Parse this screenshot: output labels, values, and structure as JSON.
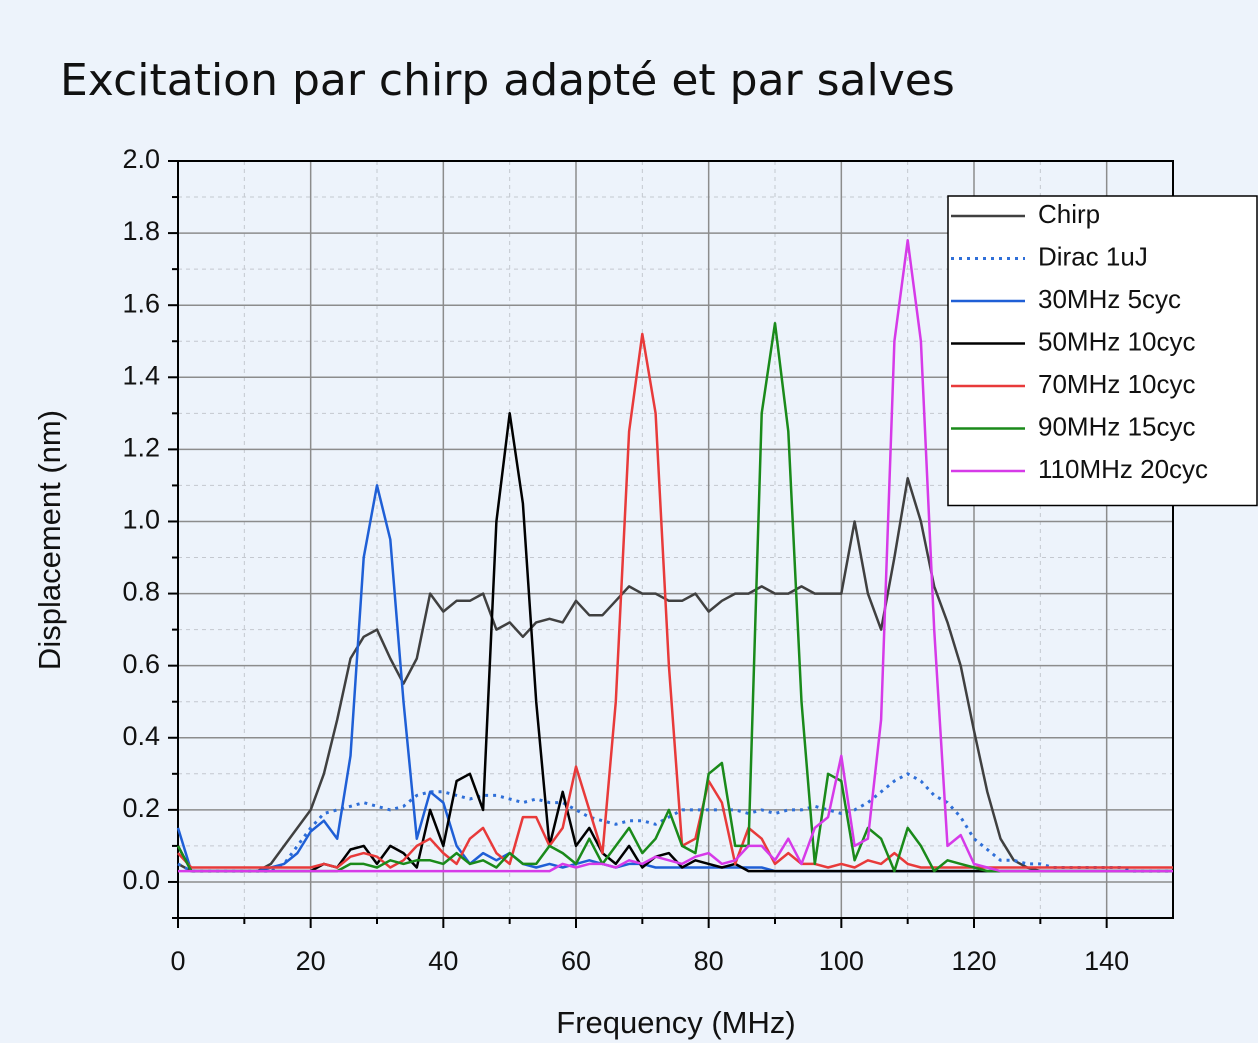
{
  "chart_data": {
    "type": "line",
    "title": "Excitation par chirp adapté et par salves",
    "x_label": "Frequency (MHz)",
    "y_label": "Displacement (nm)",
    "xlim": [
      0,
      150
    ],
    "ylim": [
      -0.1,
      2.0
    ],
    "xticks": [
      0,
      20,
      40,
      60,
      80,
      100,
      120,
      140
    ],
    "yticks": [
      {
        "value": 0,
        "label": "0.0"
      },
      0.2,
      0.4,
      0.6,
      0.8,
      {
        "value": 1,
        "label": "1.0"
      },
      1.2,
      1.4,
      1.6,
      1.8,
      {
        "value": 2,
        "label": "2.0"
      }
    ],
    "xminorticks": [
      10,
      30,
      50,
      70,
      90,
      110,
      130
    ],
    "yminorticks": [
      -0.1,
      0.1,
      0.3,
      0.5,
      0.7,
      0.9,
      1.1,
      1.3,
      1.5,
      1.7,
      1.9
    ],
    "grid": true,
    "legend": "top right",
    "x": [
      0,
      2,
      4,
      6,
      8,
      10,
      12,
      14,
      16,
      18,
      20,
      22,
      24,
      26,
      28,
      30,
      32,
      34,
      36,
      38,
      40,
      42,
      44,
      46,
      48,
      50,
      52,
      54,
      56,
      58,
      60,
      62,
      64,
      66,
      68,
      70,
      72,
      74,
      76,
      78,
      80,
      82,
      84,
      86,
      88,
      90,
      92,
      94,
      96,
      98,
      100,
      102,
      104,
      106,
      108,
      110,
      112,
      114,
      116,
      118,
      120,
      122,
      124,
      126,
      128,
      130,
      132,
      134,
      136,
      138,
      140,
      142,
      144,
      146,
      148,
      150
    ],
    "series": [
      {
        "name": "Chirp",
        "color": "#404040",
        "line_style": "solid",
        "values": [
          0.05,
          0.03,
          0.03,
          0.03,
          0.03,
          0.03,
          0.03,
          0.05,
          0.1,
          0.15,
          0.2,
          0.3,
          0.45,
          0.62,
          0.68,
          0.7,
          0.62,
          0.55,
          0.62,
          0.8,
          0.75,
          0.78,
          0.78,
          0.8,
          0.7,
          0.72,
          0.68,
          0.72,
          0.73,
          0.72,
          0.78,
          0.74,
          0.74,
          0.78,
          0.82,
          0.8,
          0.8,
          0.78,
          0.78,
          0.8,
          0.75,
          0.78,
          0.8,
          0.8,
          0.82,
          0.8,
          0.8,
          0.82,
          0.8,
          0.8,
          0.8,
          1.0,
          0.8,
          0.7,
          0.9,
          1.12,
          1.0,
          0.82,
          0.72,
          0.6,
          0.42,
          0.25,
          0.12,
          0.06,
          0.04,
          0.03,
          0.03,
          0.03,
          0.03,
          0.03,
          0.03,
          0.03,
          0.03,
          0.03,
          0.03,
          0.03
        ]
      },
      {
        "name": "Dirac 1uJ",
        "color": "#2f6fd8",
        "line_style": "dotted",
        "values": [
          0.05,
          0.03,
          0.03,
          0.03,
          0.03,
          0.03,
          0.03,
          0.03,
          0.05,
          0.1,
          0.15,
          0.19,
          0.2,
          0.21,
          0.22,
          0.21,
          0.2,
          0.21,
          0.24,
          0.25,
          0.25,
          0.24,
          0.23,
          0.24,
          0.24,
          0.23,
          0.22,
          0.23,
          0.22,
          0.22,
          0.2,
          0.18,
          0.17,
          0.16,
          0.17,
          0.17,
          0.16,
          0.18,
          0.2,
          0.2,
          0.2,
          0.2,
          0.2,
          0.19,
          0.2,
          0.19,
          0.2,
          0.2,
          0.21,
          0.2,
          0.19,
          0.2,
          0.22,
          0.25,
          0.28,
          0.3,
          0.28,
          0.24,
          0.22,
          0.18,
          0.12,
          0.09,
          0.06,
          0.06,
          0.05,
          0.05,
          0.04,
          0.04,
          0.04,
          0.04,
          0.04,
          0.04,
          0.03,
          0.03,
          0.03,
          0.03
        ]
      },
      {
        "name": "30MHz 5cyc",
        "color": "#1f5fd6",
        "line_style": "solid",
        "values": [
          0.15,
          0.03,
          0.03,
          0.03,
          0.03,
          0.03,
          0.03,
          0.04,
          0.05,
          0.08,
          0.14,
          0.17,
          0.12,
          0.35,
          0.9,
          1.1,
          0.95,
          0.5,
          0.12,
          0.25,
          0.22,
          0.1,
          0.05,
          0.08,
          0.06,
          0.08,
          0.05,
          0.04,
          0.05,
          0.04,
          0.05,
          0.06,
          0.05,
          0.04,
          0.05,
          0.05,
          0.04,
          0.04,
          0.04,
          0.04,
          0.04,
          0.04,
          0.04,
          0.04,
          0.04,
          0.03,
          0.03,
          0.03,
          0.03,
          0.03,
          0.03,
          0.03,
          0.03,
          0.03,
          0.03,
          0.03,
          0.03,
          0.03,
          0.03,
          0.03,
          0.03,
          0.03,
          0.03,
          0.03,
          0.03,
          0.03,
          0.03,
          0.03,
          0.03,
          0.03,
          0.03,
          0.03,
          0.03,
          0.03,
          0.03,
          0.03
        ]
      },
      {
        "name": "50MHz 10cyc",
        "color": "#000000",
        "line_style": "solid",
        "values": [
          0.1,
          0.03,
          0.03,
          0.03,
          0.03,
          0.03,
          0.03,
          0.03,
          0.03,
          0.03,
          0.03,
          0.05,
          0.04,
          0.09,
          0.1,
          0.05,
          0.1,
          0.08,
          0.04,
          0.2,
          0.1,
          0.28,
          0.3,
          0.2,
          1.0,
          1.3,
          1.05,
          0.5,
          0.1,
          0.25,
          0.1,
          0.15,
          0.08,
          0.05,
          0.1,
          0.04,
          0.07,
          0.08,
          0.04,
          0.06,
          0.05,
          0.04,
          0.05,
          0.03,
          0.03,
          0.03,
          0.03,
          0.03,
          0.03,
          0.03,
          0.03,
          0.03,
          0.03,
          0.03,
          0.03,
          0.03,
          0.03,
          0.03,
          0.03,
          0.03,
          0.03,
          0.03,
          0.03,
          0.03,
          0.03,
          0.03,
          0.03,
          0.03,
          0.03,
          0.03,
          0.03,
          0.03,
          0.03,
          0.03,
          0.03,
          0.03
        ]
      },
      {
        "name": "70MHz 10cyc",
        "color": "#e83a3a",
        "line_style": "solid",
        "values": [
          0.08,
          0.04,
          0.04,
          0.04,
          0.04,
          0.04,
          0.04,
          0.04,
          0.04,
          0.04,
          0.04,
          0.05,
          0.04,
          0.07,
          0.08,
          0.07,
          0.04,
          0.06,
          0.1,
          0.12,
          0.08,
          0.05,
          0.12,
          0.15,
          0.08,
          0.05,
          0.18,
          0.18,
          0.1,
          0.15,
          0.32,
          0.2,
          0.08,
          0.5,
          1.25,
          1.52,
          1.3,
          0.6,
          0.1,
          0.12,
          0.28,
          0.22,
          0.05,
          0.15,
          0.12,
          0.05,
          0.08,
          0.05,
          0.05,
          0.04,
          0.05,
          0.04,
          0.06,
          0.05,
          0.08,
          0.05,
          0.04,
          0.04,
          0.04,
          0.04,
          0.04,
          0.04,
          0.04,
          0.04,
          0.04,
          0.04,
          0.04,
          0.04,
          0.04,
          0.04,
          0.04,
          0.04,
          0.04,
          0.04,
          0.04,
          0.04
        ]
      },
      {
        "name": "90MHz 15cyc",
        "color": "#1a8a1a",
        "line_style": "solid",
        "values": [
          0.1,
          0.03,
          0.03,
          0.03,
          0.03,
          0.03,
          0.03,
          0.03,
          0.03,
          0.03,
          0.03,
          0.03,
          0.03,
          0.05,
          0.05,
          0.04,
          0.06,
          0.05,
          0.06,
          0.06,
          0.05,
          0.08,
          0.05,
          0.06,
          0.04,
          0.08,
          0.05,
          0.05,
          0.1,
          0.08,
          0.05,
          0.12,
          0.05,
          0.1,
          0.15,
          0.08,
          0.12,
          0.2,
          0.1,
          0.08,
          0.3,
          0.33,
          0.1,
          0.1,
          1.3,
          1.55,
          1.25,
          0.5,
          0.05,
          0.3,
          0.28,
          0.06,
          0.15,
          0.12,
          0.03,
          0.15,
          0.1,
          0.03,
          0.06,
          0.05,
          0.04,
          0.03,
          0.03,
          0.03,
          0.03,
          0.03,
          0.03,
          0.03,
          0.03,
          0.03,
          0.03,
          0.03,
          0.03,
          0.03,
          0.03,
          0.03
        ]
      },
      {
        "name": "110MHz 20cyc",
        "color": "#d63ae8",
        "line_style": "solid",
        "values": [
          0.03,
          0.03,
          0.03,
          0.03,
          0.03,
          0.03,
          0.03,
          0.03,
          0.03,
          0.03,
          0.03,
          0.03,
          0.03,
          0.03,
          0.03,
          0.03,
          0.03,
          0.03,
          0.03,
          0.03,
          0.03,
          0.03,
          0.03,
          0.03,
          0.03,
          0.03,
          0.03,
          0.03,
          0.03,
          0.05,
          0.04,
          0.05,
          0.05,
          0.04,
          0.06,
          0.05,
          0.07,
          0.06,
          0.05,
          0.07,
          0.08,
          0.05,
          0.06,
          0.1,
          0.1,
          0.06,
          0.12,
          0.05,
          0.15,
          0.18,
          0.35,
          0.1,
          0.12,
          0.45,
          1.5,
          1.78,
          1.5,
          0.7,
          0.1,
          0.13,
          0.05,
          0.04,
          0.03,
          0.03,
          0.03,
          0.03,
          0.03,
          0.03,
          0.03,
          0.03,
          0.03,
          0.03,
          0.03,
          0.03,
          0.03,
          0.03
        ]
      }
    ]
  }
}
